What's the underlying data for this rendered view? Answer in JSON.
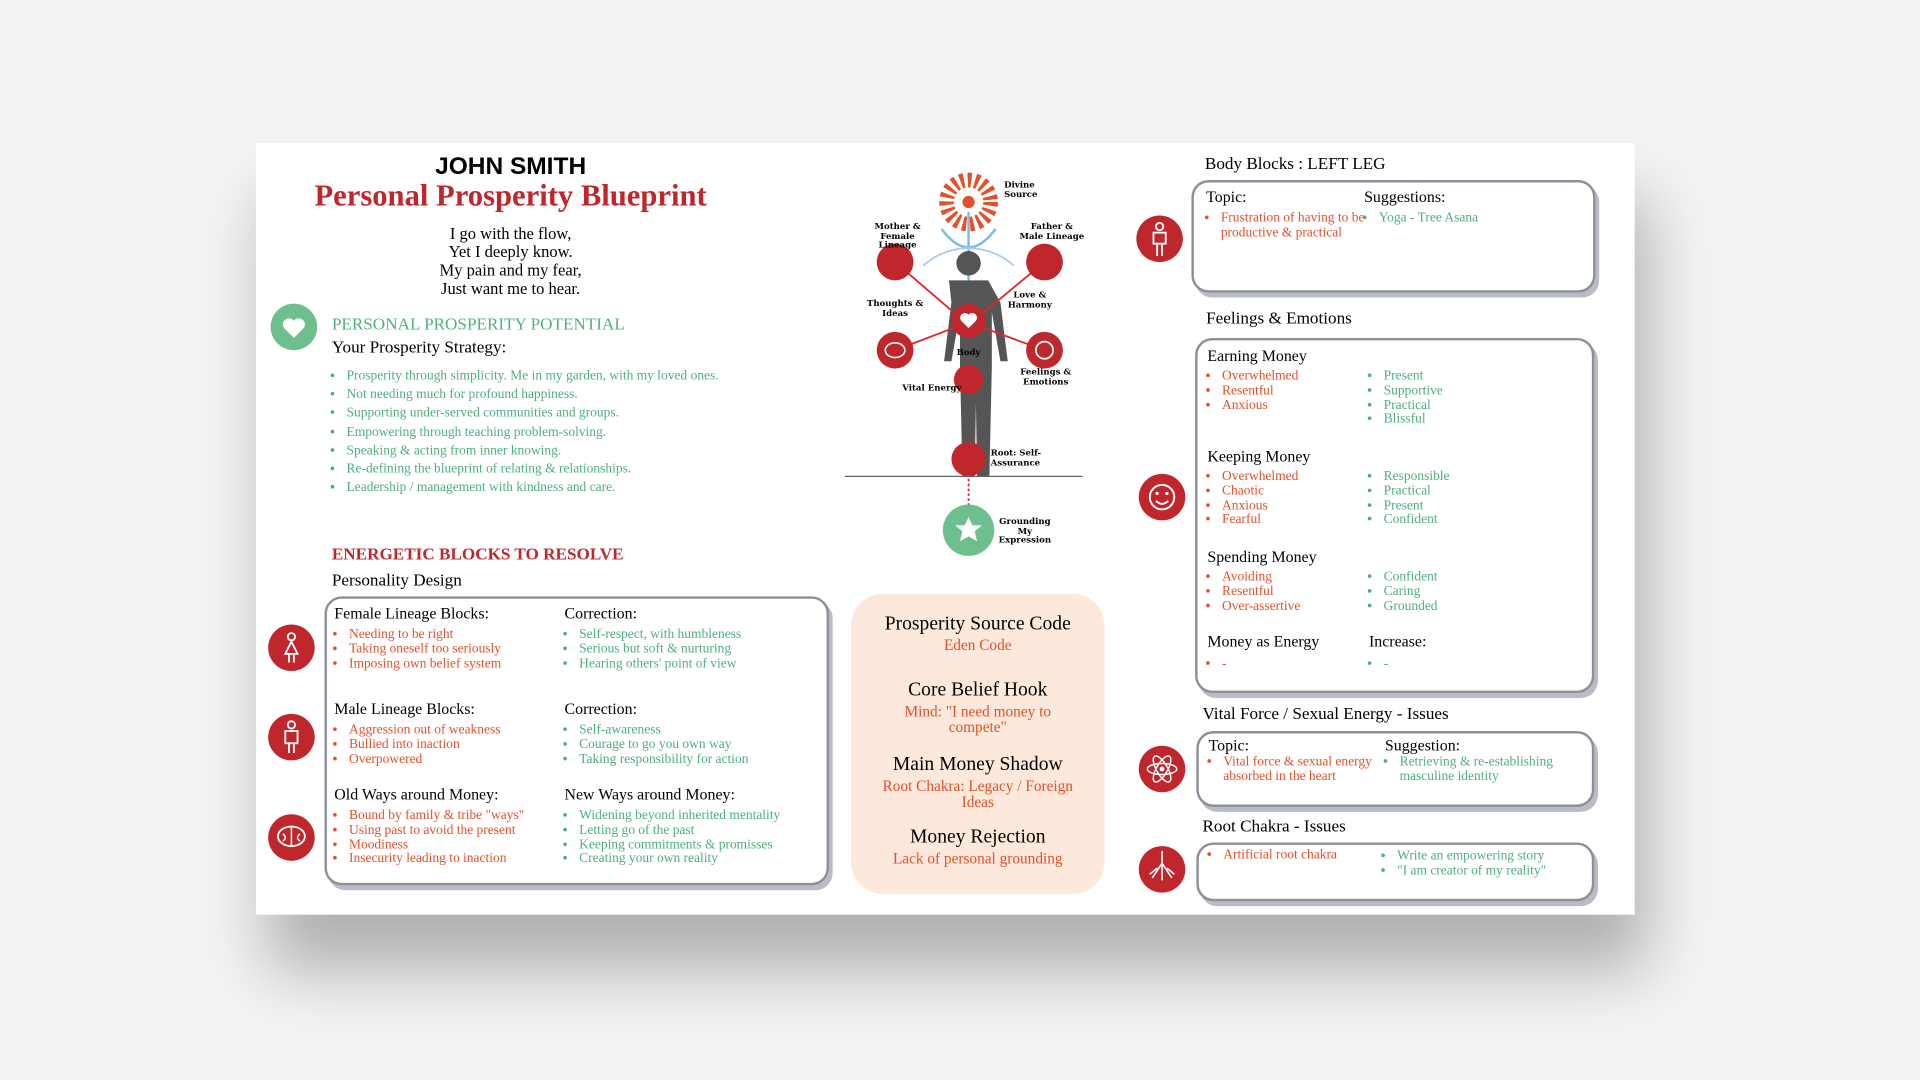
{
  "header": {
    "name": "JOHN SMITH",
    "title": "Personal Prosperity Blueprint",
    "poem": [
      "I go with the flow,",
      "Yet I deeply know.",
      "My pain and my fear,",
      "Just want me to hear."
    ]
  },
  "potential": {
    "heading": "PERSONAL PROSPERITY POTENTIAL",
    "subheading": "Your Prosperity Strategy:",
    "items": [
      "Prosperity through simplicity. Me in my garden, with my loved ones.",
      "Not needing much for profound happiness.",
      "Supporting under-served communities and groups.",
      "Empowering through teaching problem-solving.",
      "Speaking & acting from inner knowing.",
      "Re-defining the blueprint of relating & relationships.",
      "Leadership / management with kindness and care."
    ]
  },
  "blocks": {
    "heading": "ENERGETIC BLOCKS TO RESOLVE",
    "subheading": "Personality Design",
    "groups": [
      {
        "title": "Female Lineage Blocks:",
        "items": [
          "Needing to be right",
          "Taking oneself too seriously",
          "Imposing own belief system"
        ],
        "correction_title": "Correction:",
        "corrections": [
          "Self-respect, with humbleness",
          "Serious but soft & nurturing",
          "Hearing others' point of view"
        ]
      },
      {
        "title": "Male Lineage Blocks:",
        "items": [
          "Aggression out of weakness",
          "Bullied into inaction",
          "Overpowered"
        ],
        "correction_title": "Correction:",
        "corrections": [
          "Self-awareness",
          "Courage to go you own way",
          "Taking responsibility for action"
        ]
      },
      {
        "title": "Old Ways around Money:",
        "items": [
          "Bound by family & tribe \"ways\"",
          "Using past to avoid the present",
          "Moodiness",
          "Insecurity leading to inaction"
        ],
        "correction_title": "New Ways around Money:",
        "corrections": [
          "Widening beyond inherited mentality",
          "Letting go of the past",
          "Keeping commitments & promisses",
          "Creating your own reality"
        ]
      }
    ]
  },
  "diagram": {
    "labels": [
      "Divine Source",
      "Mother & Female Lineage",
      "Father & Male Lineage",
      "Thoughts & Ideas",
      "Love & Harmony",
      "Body",
      "Feelings & Emotions",
      "Vital Energy",
      "Root: Self-Assurance",
      "Grounding My Expression"
    ]
  },
  "source_code": {
    "title": "Prosperity Source Code",
    "subtitle": "Eden Code",
    "sections": [
      {
        "title": "Core Belief Hook",
        "text": "Mind: \"I need money to compete\""
      },
      {
        "title": "Main Money Shadow",
        "text": "Root Chakra: Legacy / Foreign Ideas"
      },
      {
        "title": "Money Rejection",
        "text": "Lack of personal grounding"
      }
    ]
  },
  "body_blocks": {
    "heading": "Body Blocks : LEFT LEG",
    "topic_title": "Topic:",
    "suggestion_title": "Suggestions:",
    "topics": [
      "Frustration of having to be productive & practical"
    ],
    "suggestions": [
      "Yoga - Tree Asana"
    ]
  },
  "feelings": {
    "heading": "Feelings & Emotions",
    "groups": [
      {
        "title": "Earning Money",
        "negative": [
          "Overwhelmed",
          "Resentful",
          "Anxious"
        ],
        "positive": [
          "Present",
          "Supportive",
          "Practical",
          "Blissful"
        ]
      },
      {
        "title": "Keeping Money",
        "negative": [
          "Overwhelmed",
          "Chaotic",
          "Anxious",
          "Fearful"
        ],
        "positive": [
          "Responsible",
          "Practical",
          "Present",
          "Confident"
        ]
      },
      {
        "title": "Spending Money",
        "negative": [
          "Avoiding",
          "Resentful",
          "Over-assertive"
        ],
        "positive": [
          "Confident",
          "Caring",
          "Grounded"
        ]
      },
      {
        "title": "Money as Energy",
        "positive_title": "Increase:",
        "negative": [
          "-"
        ],
        "positive": [
          "-"
        ]
      }
    ]
  },
  "vital": {
    "heading": "Vital Force / Sexual Energy - Issues",
    "topic_title": "Topic:",
    "suggestion_title": "Suggestion:",
    "topics": [
      "Vital force & sexual energy absorbed in the heart"
    ],
    "suggestions": [
      "Retrieving & re-establishing masculine identity"
    ]
  },
  "root": {
    "heading": "Root Chakra - Issues",
    "topics": [
      "Artificial root chakra"
    ],
    "suggestions": [
      "Write an empowering story",
      "\"I am creator of my reality\""
    ]
  }
}
